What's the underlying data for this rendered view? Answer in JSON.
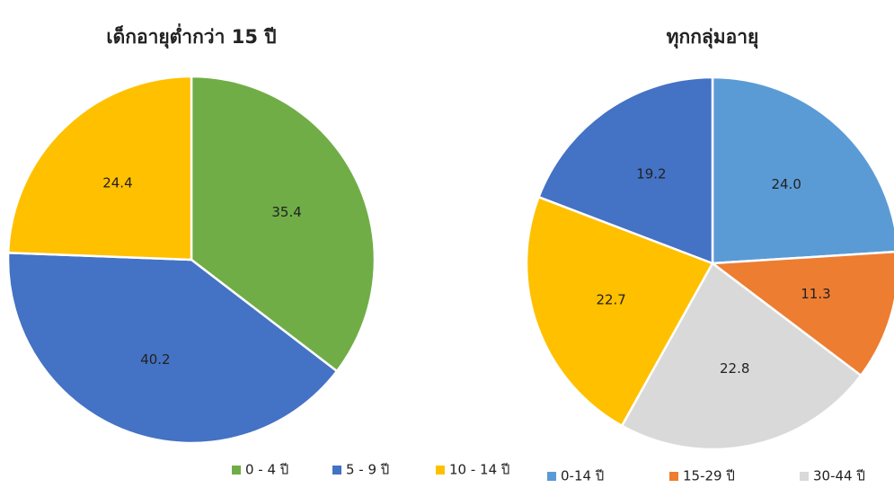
{
  "chart_data": [
    {
      "type": "pie",
      "title": "เด็กอายุต่ำกว่า 15 ปี",
      "categories": [
        "0 - 4 ปี",
        "5 - 9 ปี",
        "10 - 14 ปี"
      ],
      "values": [
        35.4,
        40.2,
        24.4
      ],
      "colors": [
        "#70ad47",
        "#4472c4",
        "#ffc000"
      ]
    },
    {
      "type": "pie",
      "title": "ทุกกลุ่มอายุ",
      "categories": [
        "0-14 ปี",
        "15-29 ปี",
        "30-44 ปี",
        null,
        null
      ],
      "values": [
        24,
        11.3,
        22.8,
        22.7,
        19.2
      ],
      "value_labels": [
        "24.0",
        "11.3",
        "22.8",
        "22.7",
        "19.2"
      ],
      "colors": [
        "#5b9bd5",
        "#ed7d31",
        "#d9d9d9",
        "#ffc000",
        "#4472c4"
      ]
    }
  ]
}
